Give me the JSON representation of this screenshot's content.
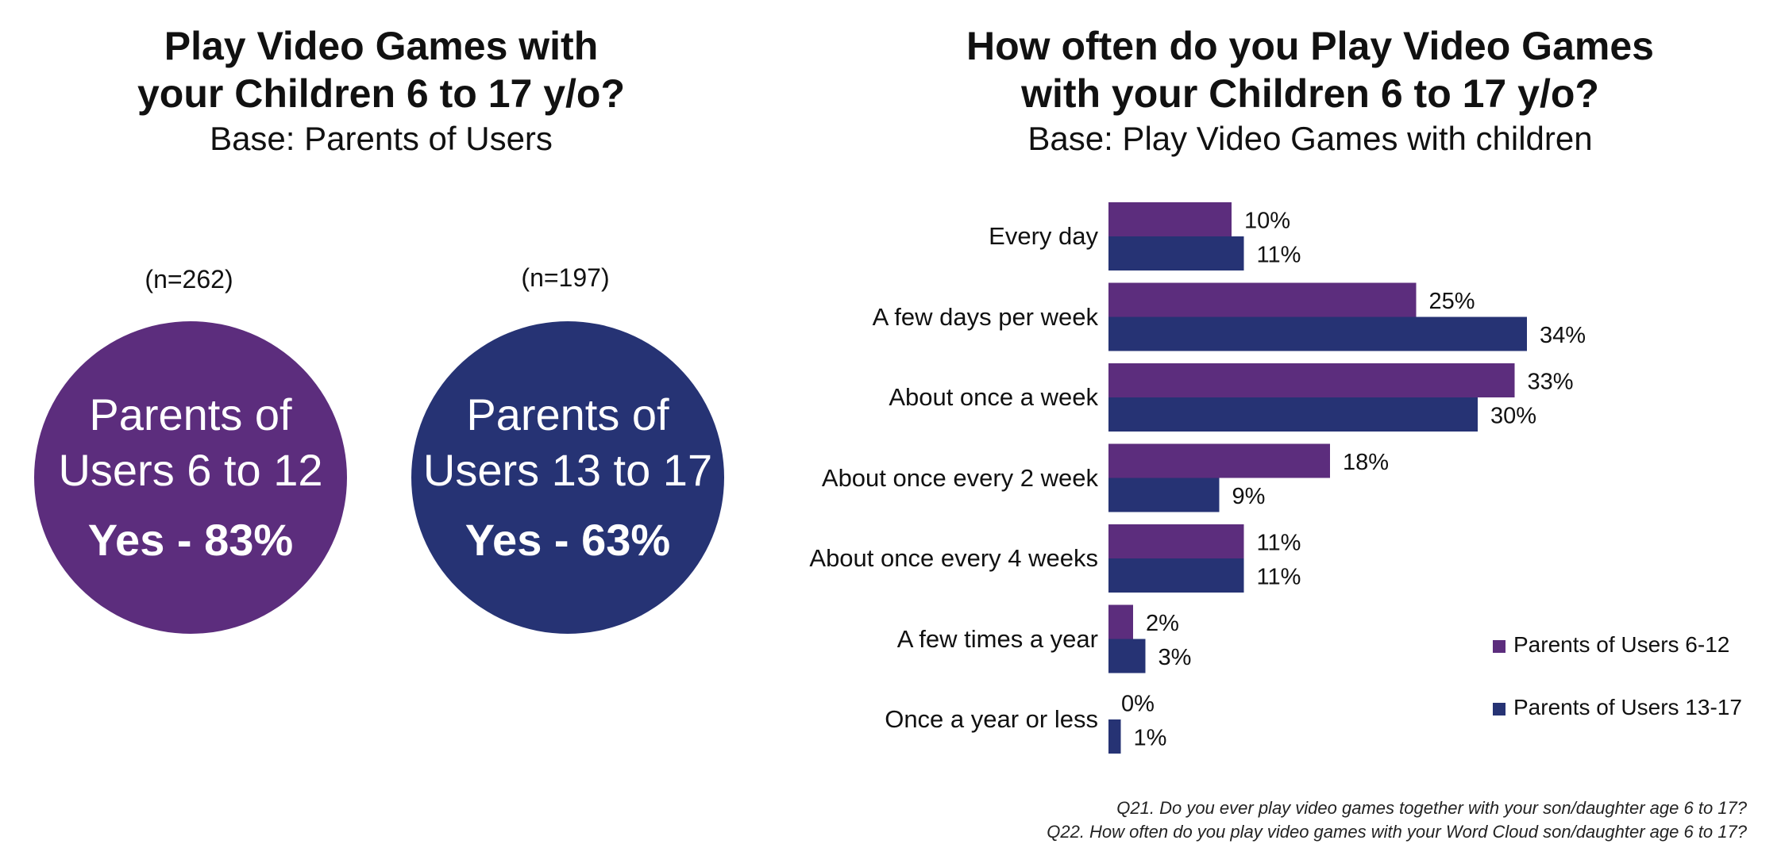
{
  "colors": {
    "purple": "#5c2d7d",
    "navy": "#263374"
  },
  "left": {
    "title_line1": "Play Video Games with",
    "title_line2": "your Children 6 to 17 y/o?",
    "subtitle": "Base: Parents of Users",
    "circles": [
      {
        "n": "(n=262)",
        "line1": "Parents of",
        "line2": "Users 6 to 12",
        "result": "Yes - 83%",
        "value": 83
      },
      {
        "n": "(n=197)",
        "line1": "Parents of",
        "line2": "Users 13 to 17",
        "result": "Yes - 63%",
        "value": 63
      }
    ]
  },
  "chart_data": {
    "type": "bar",
    "orientation": "horizontal",
    "title_line1": "How often do you Play Video Games",
    "title_line2": "with your Children 6 to 17 y/o?",
    "subtitle": "Base: Play Video Games with children",
    "categories": [
      "Every day",
      "A few days per week",
      "About once a week",
      "About once every 2 week",
      "About once every 4 weeks",
      "A few times a year",
      "Once a year or less"
    ],
    "series": [
      {
        "name": "Parents of Users 6-12",
        "values": [
          10,
          25,
          33,
          18,
          11,
          2,
          0
        ],
        "labels": [
          "10%",
          "25%",
          "33%",
          "18%",
          "11%",
          "2%",
          "0%"
        ]
      },
      {
        "name": "Parents of Users 13-17",
        "values": [
          11,
          34,
          30,
          9,
          11,
          3,
          1
        ],
        "labels": [
          "11%",
          "34%",
          "30%",
          "9%",
          "11%",
          "3%",
          "1%"
        ]
      }
    ],
    "xlim": [
      0,
      40
    ],
    "grid": false,
    "legend_position": "bottom-right"
  },
  "footnotes": [
    "Q21. Do you ever play video games together with your son/daughter age 6 to 17?",
    "Q22. How often do you play video games with your Word Cloud son/daughter age 6 to 17?"
  ]
}
